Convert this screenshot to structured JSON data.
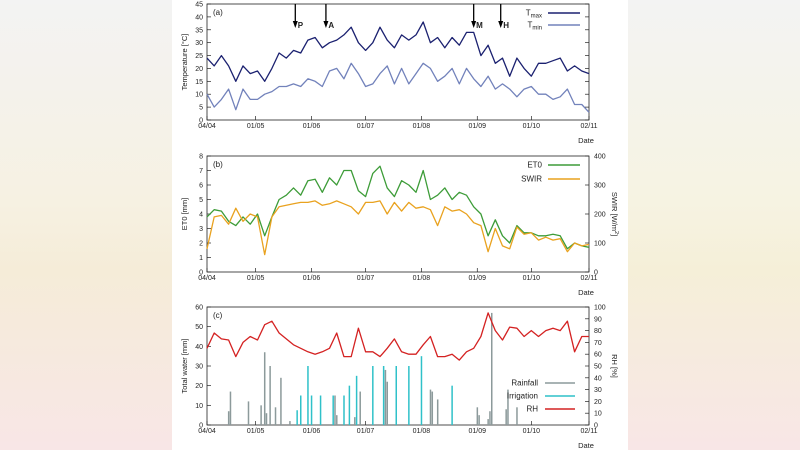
{
  "chart_data": [
    {
      "type": "line",
      "panel_label": "(a)",
      "ylabel": "Temperature [°C]",
      "xlabel": "Date",
      "ylim": [
        0,
        45
      ],
      "yticks": [
        "0",
        "5",
        "10",
        "15",
        "20",
        "25",
        "30",
        "35",
        "40",
        "45"
      ],
      "xticks": [
        "04/04",
        "01/05",
        "01/06",
        "01/07",
        "01/08",
        "01/09",
        "01/10",
        "02/11"
      ],
      "legend_position": "top-right",
      "x": [
        "04/04",
        "08/04",
        "12/04",
        "16/04",
        "20/04",
        "24/04",
        "28/04",
        "02/05",
        "06/05",
        "10/05",
        "14/05",
        "18/05",
        "22/05",
        "26/05",
        "30/05",
        "03/06",
        "07/06",
        "11/06",
        "15/06",
        "19/06",
        "23/06",
        "27/06",
        "01/07",
        "05/07",
        "09/07",
        "13/07",
        "17/07",
        "21/07",
        "25/07",
        "29/07",
        "02/08",
        "06/08",
        "10/08",
        "14/08",
        "18/08",
        "22/08",
        "26/08",
        "30/08",
        "03/09",
        "07/09",
        "11/09",
        "15/09",
        "19/09",
        "23/09",
        "27/09",
        "01/10",
        "05/10",
        "09/10",
        "13/10",
        "17/10",
        "21/10",
        "25/10",
        "29/10",
        "02/11"
      ],
      "series": [
        {
          "name": "Tmax",
          "name_main": "T",
          "name_sub": "max",
          "color": "#1b2170",
          "values": [
            24,
            21,
            25,
            21,
            15,
            21,
            18,
            19,
            15,
            20,
            26,
            24,
            27,
            26,
            31,
            32,
            28,
            30,
            31,
            33,
            36,
            30,
            27,
            30,
            36,
            31,
            28,
            33,
            31,
            33,
            38,
            30,
            32,
            28,
            32,
            29,
            34,
            34,
            25,
            29,
            22,
            24,
            17,
            24,
            20,
            17,
            22,
            22,
            23,
            24,
            19,
            21,
            19,
            18
          ]
        },
        {
          "name": "Tmin",
          "name_main": "T",
          "name_sub": "min",
          "color": "#7282bb",
          "values": [
            10,
            5,
            8,
            12,
            4,
            12,
            8,
            8,
            10,
            11,
            13,
            13,
            14,
            13,
            16,
            15,
            13,
            19,
            20,
            16,
            22,
            18,
            13,
            14,
            18,
            21,
            14,
            20,
            14,
            18,
            22,
            20,
            15,
            17,
            20,
            14,
            20,
            16,
            13,
            17,
            12,
            14,
            12,
            9,
            12,
            13,
            10,
            10,
            8,
            9,
            12,
            6,
            6,
            3
          ]
        }
      ],
      "annotations": [
        {
          "label": "P",
          "date": "23/05"
        },
        {
          "label": "A",
          "date": "09/06"
        },
        {
          "label": "M",
          "date": "30/08"
        },
        {
          "label": "H",
          "date": "14/09"
        }
      ]
    },
    {
      "type": "line",
      "panel_label": "(b)",
      "ylabel": "ET0 [mm]",
      "y2label_main": "SWIR [W/m",
      "y2label_sup": "2",
      "y2label_end": "]",
      "xlabel": "Date",
      "ylim": [
        0,
        8
      ],
      "y2lim": [
        0,
        400
      ],
      "yticks": [
        "0",
        "1",
        "2",
        "3",
        "4",
        "5",
        "6",
        "7",
        "8"
      ],
      "y2ticks": [
        "0",
        "100",
        "200",
        "300",
        "400"
      ],
      "xticks": [
        "04/04",
        "01/05",
        "01/06",
        "01/07",
        "01/08",
        "01/09",
        "01/10",
        "02/11"
      ],
      "legend_position": "top-right",
      "x": [
        "04/04",
        "08/04",
        "12/04",
        "16/04",
        "20/04",
        "24/04",
        "28/04",
        "02/05",
        "06/05",
        "10/05",
        "14/05",
        "18/05",
        "22/05",
        "26/05",
        "30/05",
        "03/06",
        "07/06",
        "11/06",
        "15/06",
        "19/06",
        "23/06",
        "27/06",
        "01/07",
        "05/07",
        "09/07",
        "13/07",
        "17/07",
        "21/07",
        "25/07",
        "29/07",
        "02/08",
        "06/08",
        "10/08",
        "14/08",
        "18/08",
        "22/08",
        "26/08",
        "30/08",
        "03/09",
        "07/09",
        "11/09",
        "15/09",
        "19/09",
        "23/09",
        "27/09",
        "01/10",
        "05/10",
        "09/10",
        "13/10",
        "17/10",
        "21/10",
        "25/10",
        "29/10",
        "02/11"
      ],
      "series": [
        {
          "name": "ET0",
          "axis": "left",
          "color": "#3d9c38",
          "values": [
            3.8,
            4.3,
            4.2,
            3.5,
            3.2,
            3.8,
            3.3,
            4.0,
            2.5,
            3.8,
            5.0,
            5.3,
            5.8,
            5.3,
            6.3,
            6.4,
            5.5,
            6.5,
            6.0,
            7.0,
            7.0,
            5.6,
            5.2,
            6.8,
            7.3,
            5.8,
            5.2,
            6.3,
            6.0,
            5.5,
            7.0,
            5.0,
            5.3,
            5.8,
            5.0,
            5.5,
            5.3,
            4.5,
            4.0,
            2.5,
            3.6,
            2.5,
            2.0,
            3.2,
            2.7,
            2.7,
            2.5,
            2.5,
            2.6,
            2.5,
            1.6,
            2.0,
            1.8,
            1.7
          ]
        },
        {
          "name": "SWIR",
          "axis": "right",
          "color": "#e9a21f",
          "values": [
            80,
            190,
            195,
            165,
            220,
            175,
            200,
            190,
            60,
            190,
            225,
            230,
            235,
            240,
            240,
            245,
            230,
            235,
            245,
            235,
            225,
            200,
            240,
            240,
            245,
            200,
            240,
            210,
            240,
            220,
            225,
            215,
            160,
            225,
            210,
            215,
            200,
            170,
            160,
            70,
            150,
            90,
            80,
            155,
            130,
            135,
            110,
            120,
            110,
            115,
            70,
            100,
            90,
            95
          ]
        }
      ]
    },
    {
      "type": "bar+line",
      "panel_label": "(c)",
      "ylabel": "Total water [mm]",
      "y2label": "RH [%]",
      "xlabel": "Date",
      "ylim": [
        0,
        60
      ],
      "y2lim": [
        0,
        100
      ],
      "yticks": [
        "0",
        "10",
        "20",
        "30",
        "40",
        "50",
        "60"
      ],
      "y2ticks": [
        "0",
        "10",
        "20",
        "30",
        "40",
        "50",
        "60",
        "70",
        "80",
        "90",
        "100"
      ],
      "xticks": [
        "04/04",
        "01/05",
        "01/06",
        "01/07",
        "01/08",
        "01/09",
        "01/10",
        "02/11"
      ],
      "legend_position": "bottom-right",
      "rainfall": {
        "name": "Rainfall",
        "color": "#8c9a9b",
        "points": [
          [
            "16/04",
            7
          ],
          [
            "17/04",
            17
          ],
          [
            "27/04",
            12
          ],
          [
            "04/05",
            10
          ],
          [
            "06/05",
            37
          ],
          [
            "07/05",
            6
          ],
          [
            "09/05",
            30
          ],
          [
            "12/05",
            9
          ],
          [
            "15/05",
            24
          ],
          [
            "20/05",
            2
          ],
          [
            "14/06",
            15
          ],
          [
            "15/06",
            5
          ],
          [
            "25/06",
            4
          ],
          [
            "28/06",
            17
          ],
          [
            "12/07",
            28
          ],
          [
            "13/07",
            22
          ],
          [
            "06/08",
            18
          ],
          [
            "07/08",
            17
          ],
          [
            "10/08",
            13
          ],
          [
            "01/09",
            9
          ],
          [
            "02/09",
            5
          ],
          [
            "07/09",
            3
          ],
          [
            "08/09",
            7
          ],
          [
            "09/09",
            57
          ],
          [
            "17/09",
            8
          ],
          [
            "18/09",
            18
          ],
          [
            "23/09",
            9
          ]
        ]
      },
      "irrigation": {
        "name": "Irrigation",
        "color": "#2fc1c9",
        "points": [
          [
            "24/05",
            7.5
          ],
          [
            "26/05",
            15
          ],
          [
            "30/05",
            30
          ],
          [
            "01/06",
            15
          ],
          [
            "06/06",
            15
          ],
          [
            "13/06",
            15
          ],
          [
            "19/06",
            15
          ],
          [
            "22/06",
            20
          ],
          [
            "26/06",
            25
          ],
          [
            "05/07",
            30
          ],
          [
            "11/07",
            30
          ],
          [
            "18/07",
            30
          ],
          [
            "25/07",
            30
          ],
          [
            "01/08",
            35
          ],
          [
            "18/08",
            20
          ]
        ]
      },
      "rh": {
        "name": "RH",
        "axis": "right",
        "color": "#d42222",
        "x": [
          "04/04",
          "08/04",
          "12/04",
          "16/04",
          "20/04",
          "24/04",
          "28/04",
          "02/05",
          "06/05",
          "10/05",
          "14/05",
          "18/05",
          "22/05",
          "26/05",
          "30/05",
          "03/06",
          "07/06",
          "11/06",
          "15/06",
          "19/06",
          "23/06",
          "27/06",
          "01/07",
          "05/07",
          "09/07",
          "13/07",
          "17/07",
          "21/07",
          "25/07",
          "29/07",
          "02/08",
          "06/08",
          "10/08",
          "14/08",
          "18/08",
          "22/08",
          "26/08",
          "30/08",
          "03/09",
          "07/09",
          "11/09",
          "15/09",
          "19/09",
          "23/09",
          "27/09",
          "01/10",
          "05/10",
          "09/10",
          "13/10",
          "17/10",
          "21/10",
          "25/10",
          "29/10",
          "02/11"
        ],
        "values": [
          65,
          78,
          73,
          72,
          58,
          70,
          75,
          72,
          85,
          88,
          78,
          73,
          68,
          65,
          62,
          60,
          62,
          65,
          78,
          58,
          58,
          82,
          62,
          62,
          58,
          65,
          73,
          62,
          60,
          60,
          68,
          75,
          58,
          58,
          60,
          55,
          62,
          65,
          75,
          95,
          80,
          72,
          83,
          82,
          75,
          80,
          75,
          80,
          82,
          80,
          88,
          62,
          75,
          75
        ]
      }
    }
  ]
}
